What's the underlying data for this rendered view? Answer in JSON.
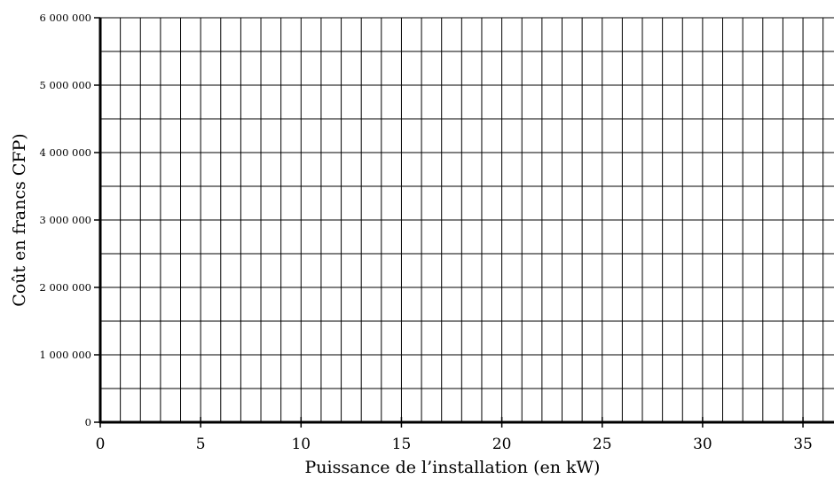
{
  "chart_data": {
    "type": "line",
    "title": "",
    "xlabel": "Puissance de l’installation (en kW)",
    "ylabel": "Coût en francs CFP)",
    "xlim": [
      0,
      36.5
    ],
    "ylim": [
      0,
      6000000
    ],
    "x_major_ticks": [
      0,
      5,
      10,
      15,
      20,
      25,
      30,
      35
    ],
    "x_tick_labels": [
      "0",
      "5",
      "10",
      "15",
      "20",
      "25",
      "30",
      "35"
    ],
    "y_major_ticks": [
      0,
      1000000,
      2000000,
      3000000,
      4000000,
      5000000,
      6000000
    ],
    "y_tick_labels": [
      "0",
      "1 000 000",
      "2 000 000",
      "3 000 000",
      "4 000 000",
      "5 000 000",
      "6 000 000"
    ],
    "x_grid_step": 1,
    "y_grid_step": 500000,
    "grid": true,
    "series": []
  }
}
